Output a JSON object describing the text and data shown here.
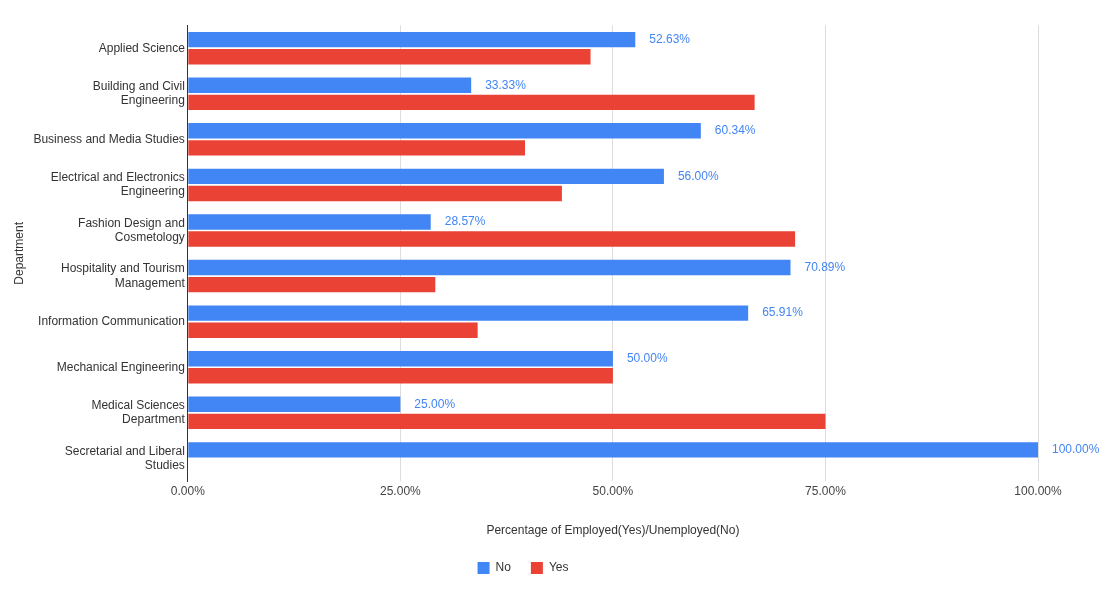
{
  "chart_data": {
    "type": "bar",
    "orientation": "horizontal",
    "xlabel": "Percentage of Employed(Yes)/Unemployed(No)",
    "ylabel": "Department",
    "categories": [
      "Applied Science",
      "Building and Civil Engineering",
      "Business and Media Studies",
      "Electrical and Electronics Engineering",
      "Fashion Design and Cosmetology",
      "Hospitality and Tourism Management",
      "Information Communication",
      "Mechanical Engineering",
      "Medical Sciences Department",
      "Secretarial and Liberal Studies"
    ],
    "series": [
      {
        "name": "No",
        "color": "#4285f4",
        "values": [
          52.63,
          33.33,
          60.34,
          56.0,
          28.57,
          70.89,
          65.91,
          50.0,
          25.0,
          100.0
        ],
        "value_labels": [
          "52.63%",
          "33.33%",
          "60.34%",
          "56.00%",
          "28.57%",
          "70.89%",
          "65.91%",
          "50.00%",
          "25.00%",
          "100.00%"
        ]
      },
      {
        "name": "Yes",
        "color": "#ea4335",
        "values": [
          47.37,
          66.67,
          39.66,
          44.0,
          71.43,
          29.11,
          34.09,
          50.0,
          75.0,
          0
        ]
      }
    ],
    "xlim": [
      0,
      100
    ],
    "xticks": [
      {
        "value": 0,
        "label": "0.00%"
      },
      {
        "value": 25,
        "label": "25.00%"
      },
      {
        "value": 50,
        "label": "50.00%"
      },
      {
        "value": 75,
        "label": "75.00%"
      },
      {
        "value": 100,
        "label": "100.00%"
      }
    ],
    "grid": "x",
    "legend": "bottom"
  }
}
